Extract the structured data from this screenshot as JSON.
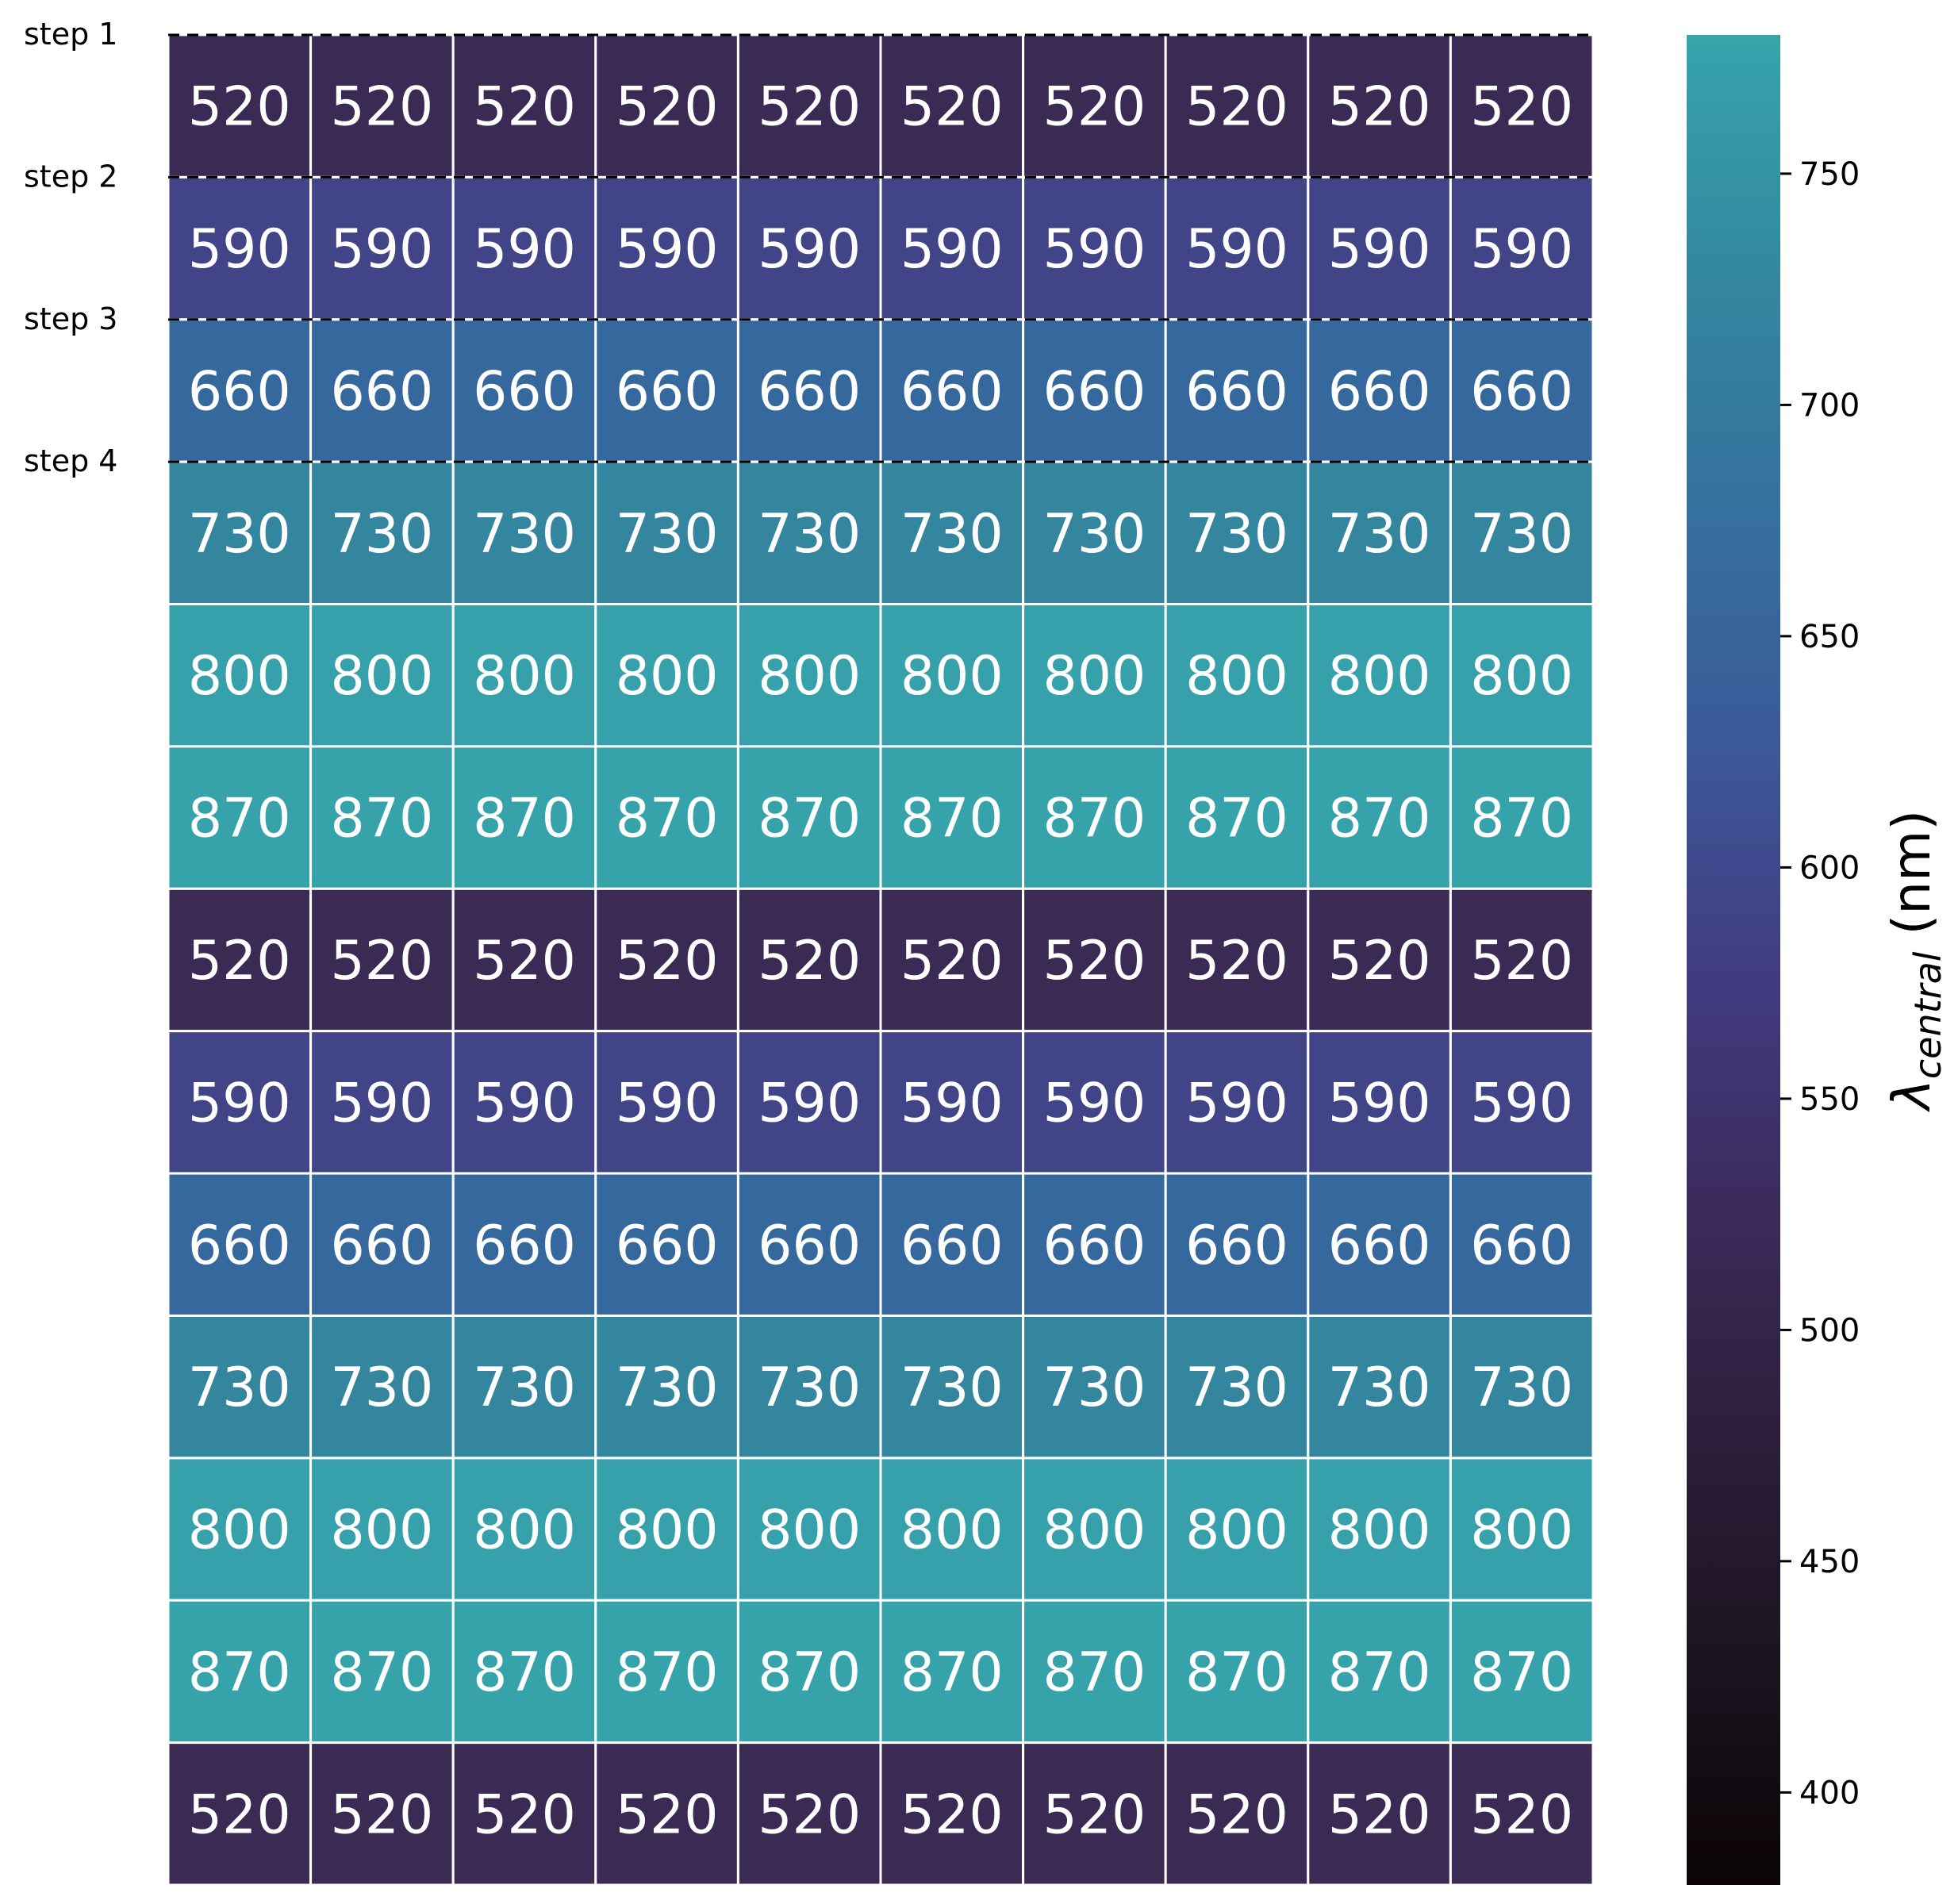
{
  "chart_data": {
    "type": "heatmap",
    "title": "",
    "n_columns": 10,
    "row_values": [
      520,
      590,
      660,
      730,
      800,
      870,
      520,
      590,
      660,
      730,
      800,
      870,
      520
    ],
    "step_labels": [
      "step 1",
      "step 2",
      "step 3",
      "step 4"
    ],
    "step_dividers": "dashed",
    "colormap": "mako",
    "cell_label_color": "#ffffff",
    "grid_color": "#ffffff",
    "colorbar": {
      "range": [
        380,
        780
      ],
      "ticks": [
        400,
        450,
        500,
        550,
        600,
        650,
        700,
        750
      ],
      "label_symbol": "λ",
      "label_subscript": "central",
      "label_unit": "(nm)"
    },
    "row_colors": {
      "520": "#3b2a53",
      "590": "#424488",
      "660": "#35689c",
      "730": "#34869f",
      "800": "#36a1aa",
      "870": "#36a3ab"
    },
    "colorbar_stops": [
      {
        "value": 380,
        "color": "#0b0405"
      },
      {
        "value": 430,
        "color": "#1c1420"
      },
      {
        "value": 480,
        "color": "#2d1f3d"
      },
      {
        "value": 530,
        "color": "#3c2c5e"
      },
      {
        "value": 580,
        "color": "#413d84"
      },
      {
        "value": 630,
        "color": "#3b5b99"
      },
      {
        "value": 680,
        "color": "#35729e"
      },
      {
        "value": 730,
        "color": "#34889f"
      },
      {
        "value": 780,
        "color": "#37a4ab"
      }
    ]
  }
}
